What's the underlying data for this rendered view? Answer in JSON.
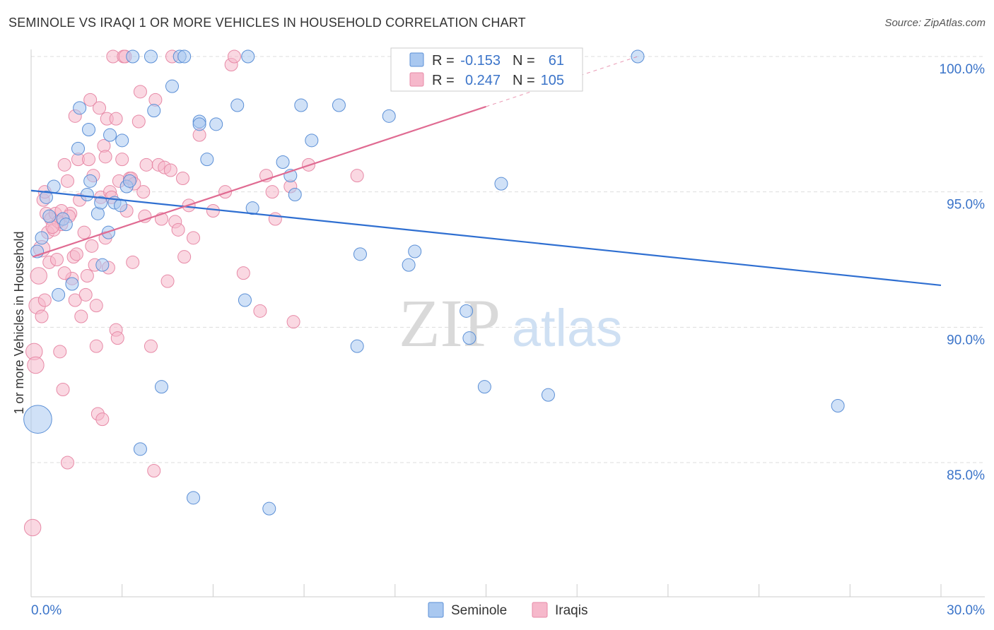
{
  "header": {
    "title": "SEMINOLE VS IRAQI 1 OR MORE VEHICLES IN HOUSEHOLD CORRELATION CHART",
    "source": "Source: ZipAtlas.com"
  },
  "watermark": {
    "zip": "ZIP",
    "atlas": "atlas"
  },
  "legend_box": {
    "seminole": {
      "r_label": "R =",
      "r_value": "-0.153",
      "n_label": "N =",
      "n_value": "61"
    },
    "iraqis": {
      "r_label": "R =",
      "r_value": "0.247",
      "n_label": "N =",
      "n_value": "105"
    }
  },
  "colors": {
    "seminole_fill": "#a9c8f0",
    "seminole_stroke": "#5b8fd6",
    "seminole_line": "#2f6fd1",
    "iraqis_fill": "#f6b8cb",
    "iraqis_stroke": "#e78aa7",
    "iraqis_line": "#e06b92",
    "value_text": "#3b74c9",
    "grid": "#dddddd"
  },
  "chart_data": {
    "type": "scatter",
    "title": "SEMINOLE VS IRAQI 1 OR MORE VEHICLES IN HOUSEHOLD CORRELATION CHART",
    "xlabel": "",
    "ylabel": "1 or more Vehicles in Household",
    "xlim": [
      0,
      30
    ],
    "ylim": [
      80.3,
      100.5
    ],
    "x_tick_labels": [
      {
        "value": 0,
        "label": "0.0%"
      },
      {
        "value": 30,
        "label": "30.0%"
      }
    ],
    "y_tick_labels": [
      {
        "value": 100,
        "label": "100.0%"
      },
      {
        "value": 95,
        "label": "95.0%"
      },
      {
        "value": 90,
        "label": "90.0%"
      },
      {
        "value": 85,
        "label": "85.0%"
      }
    ],
    "series": [
      {
        "name": "Seminole",
        "r": -0.153,
        "n": 61,
        "trend": {
          "x": [
            0,
            30
          ],
          "y": [
            95.05,
            91.55
          ]
        },
        "points": [
          [
            0.22,
            86.6,
            2.2
          ],
          [
            0.2,
            92.8,
            1
          ],
          [
            0.35,
            93.3,
            1
          ],
          [
            0.5,
            94.8,
            1
          ],
          [
            0.6,
            94.1,
            1
          ],
          [
            0.75,
            95.2,
            1
          ],
          [
            0.9,
            91.2,
            1
          ],
          [
            1.05,
            94.0,
            1
          ],
          [
            1.15,
            93.8,
            1
          ],
          [
            1.35,
            91.6,
            1
          ],
          [
            1.6,
            98.1,
            1
          ],
          [
            1.55,
            96.6,
            1
          ],
          [
            1.9,
            97.3,
            1
          ],
          [
            1.85,
            94.9,
            1
          ],
          [
            1.95,
            95.4,
            1
          ],
          [
            2.2,
            94.2,
            1
          ],
          [
            2.3,
            94.6,
            1
          ],
          [
            2.35,
            92.3,
            1
          ],
          [
            2.55,
            93.5,
            1
          ],
          [
            2.6,
            97.1,
            1
          ],
          [
            2.75,
            94.6,
            1
          ],
          [
            2.95,
            94.5,
            1
          ],
          [
            3.0,
            96.9,
            1
          ],
          [
            3.15,
            95.2,
            1
          ],
          [
            3.25,
            95.4,
            1
          ],
          [
            3.35,
            100.0,
            1
          ],
          [
            3.6,
            85.5,
            1
          ],
          [
            3.95,
            100.0,
            1
          ],
          [
            4.05,
            98.0,
            1
          ],
          [
            4.3,
            87.8,
            1
          ],
          [
            4.65,
            98.9,
            1
          ],
          [
            4.9,
            100.0,
            1
          ],
          [
            5.05,
            100.0,
            1
          ],
          [
            5.35,
            83.7,
            1
          ],
          [
            5.55,
            97.6,
            1
          ],
          [
            5.55,
            97.5,
            1
          ],
          [
            5.8,
            96.2,
            1
          ],
          [
            6.1,
            97.5,
            1
          ],
          [
            6.8,
            98.2,
            1
          ],
          [
            7.05,
            91.0,
            1
          ],
          [
            7.15,
            100.0,
            1
          ],
          [
            7.3,
            94.4,
            1
          ],
          [
            7.85,
            83.3,
            1
          ],
          [
            8.3,
            96.1,
            1
          ],
          [
            8.55,
            95.6,
            1
          ],
          [
            8.7,
            94.9,
            1
          ],
          [
            8.9,
            98.2,
            1
          ],
          [
            9.25,
            96.9,
            1
          ],
          [
            10.15,
            98.2,
            1
          ],
          [
            10.75,
            89.3,
            1
          ],
          [
            10.85,
            92.7,
            1
          ],
          [
            11.8,
            97.8,
            1
          ],
          [
            12.45,
            92.3,
            1
          ],
          [
            12.65,
            92.8,
            1
          ],
          [
            14.35,
            90.6,
            1
          ],
          [
            14.45,
            89.6,
            1
          ],
          [
            14.95,
            87.8,
            1
          ],
          [
            15.5,
            95.3,
            1
          ],
          [
            17.05,
            87.5,
            1
          ],
          [
            20.0,
            100.0,
            1
          ],
          [
            26.6,
            87.1,
            1
          ]
        ]
      },
      {
        "name": "Iraqis",
        "r": 0.247,
        "n": 105,
        "trend": {
          "x": [
            0.05,
            15.0
          ],
          "y": [
            92.6,
            98.15
          ]
        },
        "trend_extension": {
          "x": [
            15.0,
            20.0
          ],
          "y": [
            98.15,
            100.0
          ]
        },
        "points": [
          [
            0.05,
            82.6,
            1.3
          ],
          [
            0.1,
            89.1,
            1.3
          ],
          [
            0.15,
            88.6,
            1.3
          ],
          [
            0.2,
            90.8,
            1.3
          ],
          [
            0.25,
            91.9,
            1.3
          ],
          [
            0.35,
            92.9,
            1.3
          ],
          [
            0.35,
            90.4,
            1
          ],
          [
            0.4,
            94.7,
            1
          ],
          [
            0.45,
            95.0,
            1
          ],
          [
            0.5,
            94.2,
            1
          ],
          [
            0.55,
            93.5,
            1
          ],
          [
            0.6,
            92.4,
            1
          ],
          [
            0.65,
            94.0,
            1
          ],
          [
            0.75,
            93.6,
            1
          ],
          [
            0.8,
            94.2,
            1
          ],
          [
            0.85,
            92.5,
            1
          ],
          [
            0.95,
            89.1,
            1
          ],
          [
            1.0,
            93.8,
            1
          ],
          [
            1.05,
            87.7,
            1
          ],
          [
            1.1,
            96.0,
            1
          ],
          [
            1.2,
            85.0,
            1
          ],
          [
            1.2,
            95.4,
            1
          ],
          [
            1.3,
            94.2,
            1
          ],
          [
            1.35,
            91.8,
            1
          ],
          [
            1.4,
            92.6,
            1
          ],
          [
            1.45,
            91.0,
            1
          ],
          [
            1.45,
            97.8,
            1
          ],
          [
            1.55,
            96.2,
            1
          ],
          [
            1.6,
            94.7,
            1
          ],
          [
            1.65,
            90.4,
            1
          ],
          [
            1.75,
            93.5,
            1
          ],
          [
            1.85,
            91.9,
            1
          ],
          [
            1.9,
            96.2,
            1
          ],
          [
            1.95,
            98.4,
            1
          ],
          [
            2.05,
            95.6,
            1
          ],
          [
            2.1,
            92.3,
            1
          ],
          [
            2.15,
            90.8,
            1
          ],
          [
            2.15,
            89.3,
            1
          ],
          [
            2.2,
            86.8,
            1
          ],
          [
            2.25,
            98.1,
            1
          ],
          [
            2.3,
            94.8,
            1
          ],
          [
            2.35,
            86.6,
            1
          ],
          [
            2.4,
            96.7,
            1
          ],
          [
            2.45,
            96.3,
            1
          ],
          [
            2.45,
            93.3,
            1
          ],
          [
            2.5,
            97.7,
            1
          ],
          [
            2.55,
            92.2,
            1
          ],
          [
            2.6,
            95.0,
            1
          ],
          [
            2.7,
            100.0,
            1
          ],
          [
            2.8,
            97.7,
            1
          ],
          [
            2.8,
            89.9,
            1
          ],
          [
            2.9,
            95.4,
            1
          ],
          [
            3.0,
            96.2,
            1
          ],
          [
            3.05,
            100.0,
            1
          ],
          [
            3.15,
            94.3,
            1
          ],
          [
            3.25,
            95.5,
            1
          ],
          [
            3.3,
            95.5,
            1
          ],
          [
            3.35,
            92.4,
            1
          ],
          [
            3.55,
            97.6,
            1
          ],
          [
            3.6,
            98.7,
            1
          ],
          [
            3.7,
            95.0,
            1
          ],
          [
            3.75,
            94.1,
            1
          ],
          [
            3.8,
            96.0,
            1
          ],
          [
            3.95,
            89.3,
            1
          ],
          [
            4.05,
            84.7,
            1
          ],
          [
            4.1,
            98.4,
            1
          ],
          [
            4.2,
            96.0,
            1
          ],
          [
            4.3,
            94.0,
            1
          ],
          [
            4.4,
            95.9,
            1
          ],
          [
            4.5,
            91.7,
            1
          ],
          [
            4.65,
            100.0,
            1
          ],
          [
            4.75,
            93.9,
            1
          ],
          [
            4.85,
            93.6,
            1
          ],
          [
            5.0,
            95.5,
            1
          ],
          [
            5.05,
            92.6,
            1
          ],
          [
            5.35,
            93.3,
            1
          ],
          [
            5.55,
            97.1,
            1
          ],
          [
            6.0,
            94.3,
            1
          ],
          [
            6.4,
            95.0,
            1
          ],
          [
            6.6,
            99.7,
            1
          ],
          [
            6.7,
            100.0,
            1
          ],
          [
            7.0,
            92.0,
            1
          ],
          [
            7.55,
            90.6,
            1
          ],
          [
            7.75,
            95.6,
            1
          ],
          [
            7.95,
            95.0,
            1
          ],
          [
            8.05,
            94.0,
            1
          ],
          [
            8.55,
            95.2,
            1
          ],
          [
            8.65,
            90.2,
            1
          ],
          [
            9.15,
            96.0,
            1
          ],
          [
            10.75,
            95.6,
            1
          ],
          [
            3.1,
            100.0,
            1
          ],
          [
            1.0,
            94.3,
            1
          ],
          [
            0.9,
            93.9,
            1
          ],
          [
            1.5,
            92.7,
            1
          ],
          [
            2.65,
            94.8,
            1
          ],
          [
            0.7,
            93.7,
            1
          ],
          [
            1.25,
            94.1,
            1
          ],
          [
            2.0,
            93.0,
            1
          ],
          [
            3.4,
            95.3,
            1
          ],
          [
            4.6,
            95.8,
            1
          ],
          [
            5.2,
            94.5,
            1
          ],
          [
            1.8,
            91.2,
            1
          ],
          [
            2.85,
            89.6,
            1
          ],
          [
            0.45,
            91.0,
            1
          ],
          [
            1.1,
            92.0,
            1
          ]
        ]
      }
    ],
    "legend": [
      "Seminole",
      "Iraqis"
    ],
    "legend_position": "bottom-center"
  }
}
